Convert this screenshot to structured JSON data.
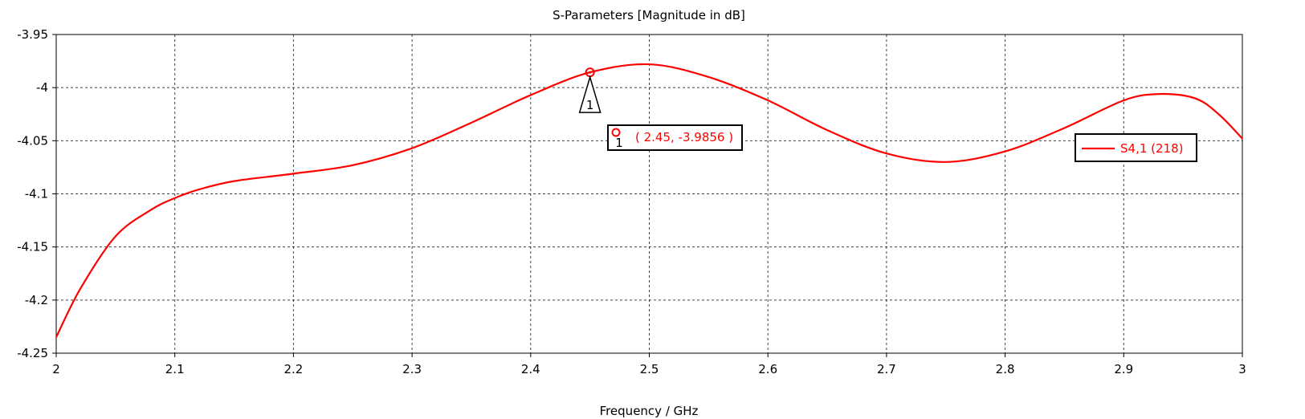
{
  "chart_data": {
    "type": "line",
    "title": "S-Parameters [Magnitude in dB]",
    "xlabel": "Frequency / GHz",
    "ylabel": "",
    "xlim": [
      2,
      3
    ],
    "ylim": [
      -4.25,
      -3.95
    ],
    "x_ticks": [
      2,
      2.1,
      2.2,
      2.3,
      2.4,
      2.5,
      2.6,
      2.7,
      2.8,
      2.9,
      3
    ],
    "x_tick_labels": [
      "2",
      "2.1",
      "2.2",
      "2.3",
      "2.4",
      "2.5",
      "2.6",
      "2.7",
      "2.8",
      "2.9",
      "3"
    ],
    "y_ticks": [
      -3.95,
      -4,
      -4.05,
      -4.1,
      -4.15,
      -4.2,
      -4.25
    ],
    "y_tick_labels": [
      "-3.95",
      "-4",
      "-4.05",
      "-4.1",
      "-4.15",
      "-4.2",
      "-4.25"
    ],
    "grid": true,
    "series": [
      {
        "name": "S4,1 (218)",
        "color": "#ff0000",
        "x": [
          2.0,
          2.02,
          2.05,
          2.08,
          2.1,
          2.12,
          2.15,
          2.2,
          2.25,
          2.3,
          2.35,
          2.4,
          2.45,
          2.5,
          2.55,
          2.6,
          2.65,
          2.7,
          2.75,
          2.8,
          2.85,
          2.9,
          2.93,
          2.96,
          2.98,
          3.0
        ],
        "y": [
          -4.235,
          -4.19,
          -4.14,
          -4.115,
          -4.104,
          -4.096,
          -4.088,
          -4.081,
          -4.073,
          -4.057,
          -4.033,
          -4.007,
          -3.9856,
          -3.978,
          -3.99,
          -4.012,
          -4.04,
          -4.062,
          -4.07,
          -4.06,
          -4.038,
          -4.012,
          -4.006,
          -4.01,
          -4.025,
          -4.048
        ]
      }
    ],
    "marker": {
      "id": "1",
      "x": 2.45,
      "y": -3.9856,
      "label": "( 2.45, -3.9856 )"
    },
    "legend": {
      "placement": "right",
      "entries": [
        "S4,1 (218)"
      ]
    }
  }
}
